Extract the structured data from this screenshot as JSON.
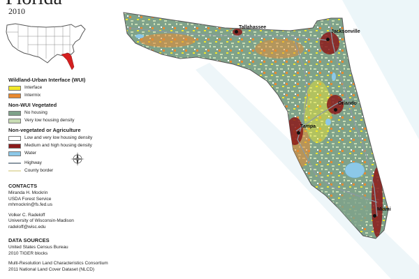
{
  "map": {
    "title": "Florida",
    "year": "2010"
  },
  "legend": {
    "wui": {
      "title": "Wildland-Urban Interface (WUI)",
      "items": [
        {
          "label": "Interface",
          "color": "#f2e82a"
        },
        {
          "label": "Intermix",
          "color": "#e8892f"
        }
      ]
    },
    "non_wui": {
      "title": "Non-WUI Vegetated",
      "items": [
        {
          "label": "No housing",
          "color": "#7fa28a"
        },
        {
          "label": "Very low housing density",
          "color": "#c8dcb4"
        }
      ]
    },
    "non_veg": {
      "title": "Non-vegetated or Agriculture",
      "items": [
        {
          "label": "Low and very low housing density",
          "color": "#ffffff"
        },
        {
          "label": "Medium and high housing density",
          "color": "#8b1a1a"
        },
        {
          "label": "Water",
          "color": "#8cc8e8"
        }
      ]
    },
    "lines": {
      "highway": "Highway",
      "county": "County border"
    }
  },
  "contacts": {
    "title": "CONTACTS",
    "person1": {
      "name": "Miranda H. Mockrin",
      "org": "USDA Forest Service",
      "email": "mhmockrin@fs.fed.us"
    },
    "person2": {
      "name": "Volker C. Radeloff",
      "org": "University of Wisconsin-Madison",
      "email": "radeloff@wisc.edu"
    }
  },
  "sources": {
    "title": "DATA SOURCES",
    "s1_line1": "United States Census Bureau",
    "s1_line2": "2010 TIGER blocks",
    "s2_line1": "Multi-Resolution Land Characteristics Consortium",
    "s2_line2": "2011 National Land Cover Dataset (NLCD)"
  },
  "cities": {
    "tallahassee": "Tallahassee",
    "jacksonville": "Jacksonville",
    "orlando": "Orlando",
    "tampa": "Tampa",
    "miami": "Miami"
  },
  "icons": {
    "compass": "compass-rose-icon",
    "inset": "usa-locator-inset"
  }
}
